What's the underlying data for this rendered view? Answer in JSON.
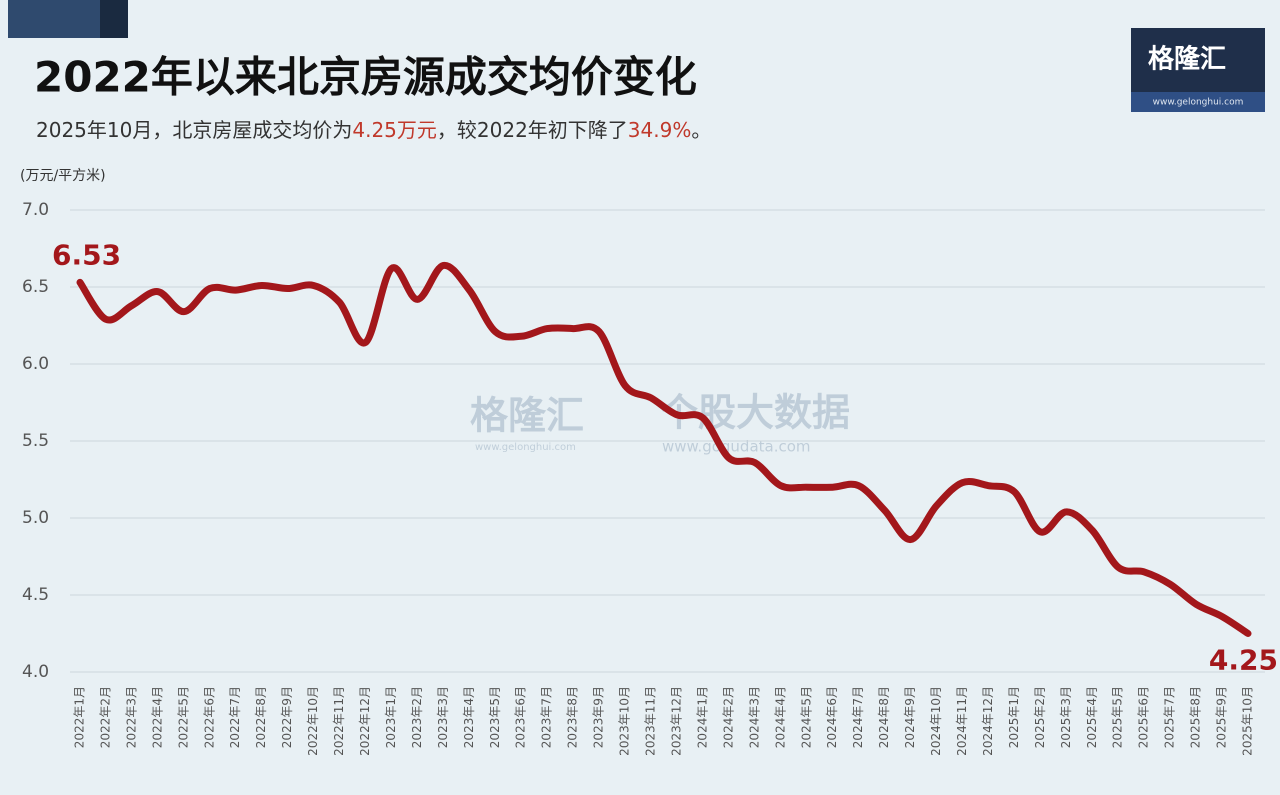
{
  "chart_data": {
    "type": "line",
    "title": "2022年以来北京房源成交均价变化",
    "subtitle": [
      {
        "text": "2025年10月，北京房屋成交均价为",
        "color": "#333333"
      },
      {
        "text": "4.25万元",
        "color": "#c0392b"
      },
      {
        "text": "，较2022年初下降了",
        "color": "#333333"
      },
      {
        "text": "34.9%",
        "color": "#c0392b"
      },
      {
        "text": "。",
        "color": "#333333"
      }
    ],
    "y_label": "(万元/平方米)",
    "logo": {
      "name": "格隆汇",
      "url": "www.gelonghui.com"
    },
    "watermark": {
      "left": "格隆汇",
      "left_url": "www.gelonghui.com",
      "right": "个股大数据",
      "right_url": "www.gogudata.com"
    },
    "categories": [
      "2022年1月",
      "2022年2月",
      "2022年3月",
      "2022年4月",
      "2022年5月",
      "2022年6月",
      "2022年7月",
      "2022年8月",
      "2022年9月",
      "2022年10月",
      "2022年11月",
      "2022年12月",
      "2023年1月",
      "2023年2月",
      "2023年3月",
      "2023年4月",
      "2023年5月",
      "2023年6月",
      "2023年7月",
      "2023年8月",
      "2023年9月",
      "2023年10月",
      "2023年11月",
      "2023年12月",
      "2024年1月",
      "2024年2月",
      "2024年3月",
      "2024年4月",
      "2024年5月",
      "2024年6月",
      "2024年7月",
      "2024年8月",
      "2024年9月",
      "2024年10月",
      "2024年11月",
      "2024年12月",
      "2025年1月",
      "2025年2月",
      "2025年3月",
      "2025年4月",
      "2025年5月",
      "2025年6月",
      "2025年7月",
      "2025年8月",
      "2025年9月",
      "2025年10月"
    ],
    "series": [
      {
        "name": "北京房源成交均价",
        "color": "#a3171b",
        "values": [
          6.53,
          6.29,
          6.38,
          6.47,
          6.34,
          6.49,
          6.48,
          6.51,
          6.49,
          6.51,
          6.4,
          6.14,
          6.62,
          6.42,
          6.64,
          6.48,
          6.21,
          6.18,
          6.23,
          6.23,
          6.21,
          5.86,
          5.78,
          5.67,
          5.65,
          5.39,
          5.36,
          5.21,
          5.2,
          5.2,
          5.21,
          5.05,
          4.86,
          5.08,
          5.23,
          5.21,
          5.17,
          4.91,
          5.04,
          4.92,
          4.68,
          4.65,
          4.57,
          4.44,
          4.36,
          4.25
        ]
      }
    ],
    "show_end_labels": true,
    "ylim": [
      4.0,
      7.0
    ],
    "yticks": [
      {
        "value": 4,
        "label": "4.0"
      },
      4.5,
      {
        "value": 5,
        "label": "5.0"
      },
      5.5,
      {
        "value": 6,
        "label": "6.0"
      },
      6.5,
      {
        "value": 7,
        "label": "7.0"
      }
    ],
    "grid": true
  }
}
